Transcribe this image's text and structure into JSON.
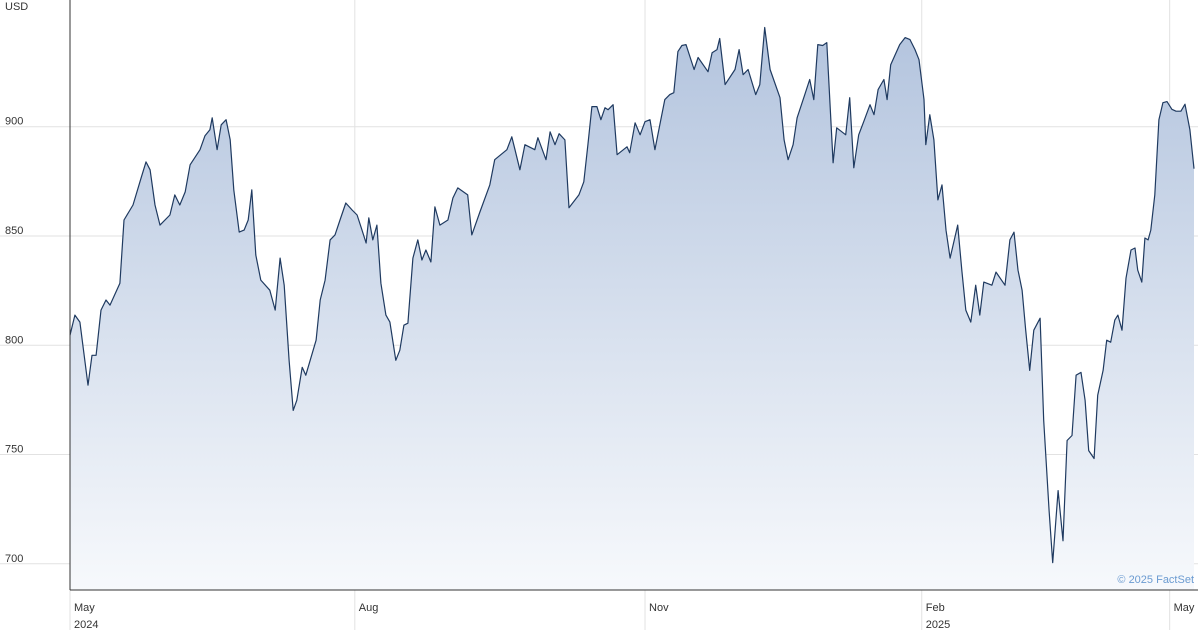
{
  "chart_data": {
    "type": "area",
    "y_unit_label": "USD",
    "credit": "© 2025 FactSet",
    "color": "#1f3a60",
    "fill_top": "#b3c4de",
    "fill_bottom": "#f7f9fc",
    "grid": true,
    "xlim": [
      0,
      250.7
    ],
    "ylim": [
      688,
      958
    ],
    "yticks": [
      700,
      750,
      800,
      850,
      900
    ],
    "xticks": [
      {
        "value": 0,
        "label": "May",
        "year": "2024"
      },
      {
        "value": 63.3,
        "label": "Aug"
      },
      {
        "value": 127.8,
        "label": "Nov"
      },
      {
        "value": 189.3,
        "label": "Feb",
        "year": "2025"
      },
      {
        "value": 244.4,
        "label": "May"
      }
    ],
    "x": [
      0,
      1.1,
      2.2,
      4,
      4.9,
      5.8,
      6.9,
      8,
      8.9,
      11.1,
      12,
      14,
      15.8,
      16.9,
      17.8,
      18.9,
      20,
      22.2,
      23.3,
      24.4,
      25.6,
      26.7,
      28.9,
      30,
      31.1,
      31.6,
      32.7,
      33.6,
      34.7,
      35.6,
      36.4,
      37.6,
      38.7,
      39.6,
      40.4,
      41.3,
      42.4,
      44.4,
      45.6,
      46.7,
      47.6,
      48.7,
      49.6,
      50.4,
      51.6,
      52.4,
      54.7,
      55.6,
      56.7,
      57.8,
      58.9,
      60,
      61.3,
      62.7,
      63.8,
      64.9,
      65.8,
      66.4,
      67.3,
      68.2,
      69.1,
      70.2,
      71.1,
      72.4,
      73.3,
      74.2,
      75.1,
      76.2,
      77.3,
      78.2,
      79.1,
      80.2,
      81.1,
      82.2,
      84,
      85.1,
      86.2,
      88.4,
      89.3,
      91.1,
      93.3,
      94.4,
      97.1,
      98.2,
      98.9,
      100,
      101.1,
      103.3,
      104,
      105.8,
      106.7,
      107.8,
      108.7,
      110,
      110.9,
      113.1,
      114.2,
      115.1,
      116,
      117.1,
      118,
      118.9,
      119.6,
      120.7,
      121.6,
      123.8,
      124.4,
      125.6,
      126.7,
      127.8,
      128.9,
      130,
      132.2,
      133.3,
      134.2,
      135.1,
      136,
      136.9,
      138.7,
      139.6,
      141.8,
      142.7,
      143.8,
      144.4,
      145.6,
      147.8,
      148.7,
      149.6,
      150.7,
      152.4,
      153.3,
      154.4,
      155.6,
      157.8,
      158.7,
      159.6,
      160.7,
      161.6,
      163.3,
      164.4,
      165.3,
      166.2,
      167.3,
      168.2,
      169.6,
      170.4,
      172.4,
      173.3,
      174.2,
      175.3,
      176.4,
      177.8,
      178.7,
      179.6,
      180.9,
      181.6,
      182.4,
      184.4,
      185.6,
      186.7,
      187.8,
      188.7,
      189.8,
      190.2,
      191.1,
      192,
      192.9,
      193.8,
      194.7,
      195.6,
      197.3,
      198.2,
      199.1,
      200.2,
      201.3,
      202.2,
      203.1,
      204.9,
      205.8,
      207.8,
      208.9,
      209.8,
      210.7,
      211.6,
      212.4,
      213.3,
      214.2,
      215.6,
      216.4,
      217.6,
      218.4,
      219.6,
      220.7,
      221.6,
      222.7,
      223.6,
      224.7,
      225.6,
      226.4,
      227.6,
      228.4,
      229.6,
      230.4,
      231.3,
      232.2,
      232.9,
      233.8,
      234.7,
      235.8,
      236.7,
      237.3,
      238.2,
      238.9,
      239.6,
      240.2,
      241.1,
      242,
      242.9,
      243.8,
      244.9,
      245.8,
      246.9,
      247.8,
      248.9,
      249.8
    ],
    "values": [
      804.6,
      813.8,
      810.6,
      781.7,
      795.4,
      795.4,
      816.1,
      820.7,
      818.4,
      828.4,
      857.3,
      864.2,
      876.6,
      883.9,
      880.3,
      864.2,
      855.0,
      859.6,
      868.8,
      864.2,
      870.2,
      882.6,
      889.5,
      895.9,
      898.6,
      904.1,
      889.5,
      900.9,
      903.2,
      894.0,
      871.1,
      851.8,
      852.7,
      857.3,
      871.1,
      841.3,
      829.8,
      825.2,
      816.1,
      839.9,
      827.5,
      793.1,
      770.2,
      774.8,
      789.9,
      786.3,
      802.3,
      820.7,
      829.8,
      848.2,
      850.5,
      857.3,
      865.1,
      861.9,
      859.6,
      852.7,
      846.8,
      858.3,
      848.2,
      855.0,
      828.4,
      813.8,
      810.6,
      793.1,
      797.7,
      809.2,
      810.1,
      839.9,
      848.2,
      839.0,
      843.6,
      838.1,
      863.3,
      855.0,
      857.3,
      867.4,
      872.0,
      868.8,
      850.5,
      861.0,
      873.4,
      884.9,
      889.5,
      895.4,
      889.5,
      880.3,
      891.8,
      889.5,
      895.0,
      884.9,
      897.7,
      891.8,
      896.8,
      894.0,
      862.9,
      868.8,
      874.8,
      891.8,
      909.2,
      909.2,
      903.2,
      908.7,
      907.8,
      910.1,
      887.2,
      890.8,
      888.1,
      901.8,
      896.3,
      902.3,
      903.2,
      889.5,
      912.4,
      914.7,
      915.6,
      934.4,
      937.2,
      937.6,
      926.2,
      931.7,
      925.2,
      933.9,
      935.3,
      940.4,
      919.3,
      926.2,
      935.3,
      923.8,
      926.2,
      914.7,
      919.3,
      945.4,
      926.2,
      913.3,
      894.0,
      884.9,
      891.8,
      904.1,
      914.7,
      921.6,
      912.4,
      937.6,
      937.2,
      938.5,
      883.5,
      899.5,
      896.3,
      913.3,
      881.2,
      896.3,
      902.3,
      910.1,
      905.5,
      917.0,
      921.6,
      912.4,
      928.4,
      937.6,
      940.8,
      939.9,
      935.3,
      930.7,
      912.4,
      891.8,
      905.5,
      894.0,
      866.5,
      873.4,
      852.7,
      839.9,
      855.0,
      834.4,
      816.1,
      810.6,
      827.5,
      813.8,
      828.9,
      827.5,
      833.5,
      827.5,
      848.2,
      851.8,
      834.4,
      825.2,
      806.9,
      788.5,
      806.9,
      812.4,
      765.6,
      724.3,
      700.5,
      733.5,
      710.5,
      756.4,
      758.7,
      786.3,
      787.6,
      774.8,
      751.8,
      748.2,
      777.1,
      788.5,
      802.3,
      801.4,
      811.5,
      813.8,
      806.9,
      830.7,
      843.6,
      844.5,
      834.4,
      828.9,
      849.1,
      848.2,
      852.7,
      868.8,
      903.2,
      911.0,
      911.5,
      908.0,
      907.1,
      907.1,
      910.3,
      898.6,
      880.8
    ]
  }
}
